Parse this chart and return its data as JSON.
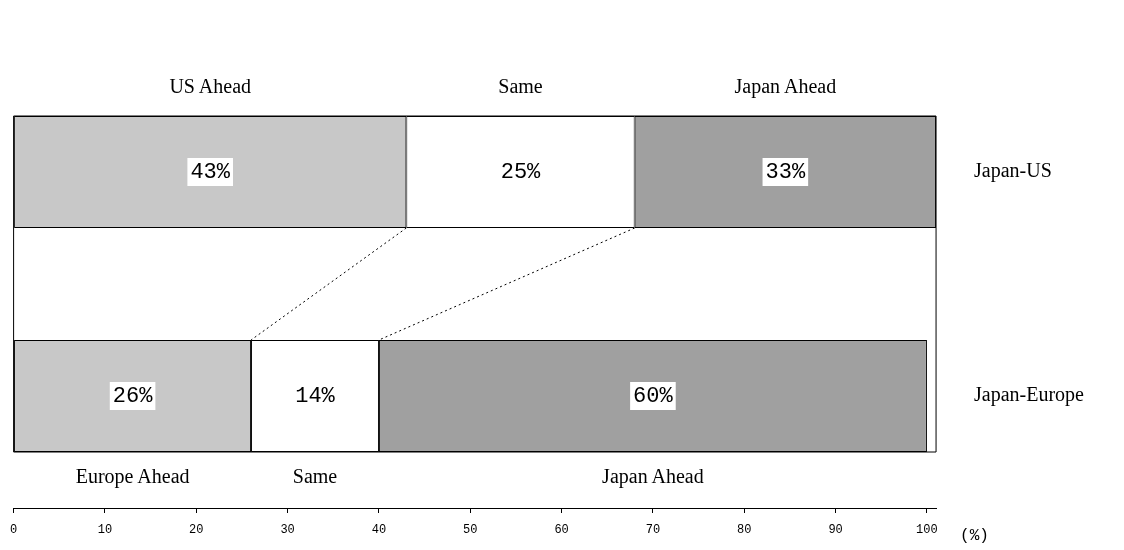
{
  "chart_data": {
    "type": "bar",
    "orientation": "horizontal",
    "stacked": true,
    "categories": [
      "Japan-US",
      "Japan-Europe"
    ],
    "series": [
      {
        "color": "#c8c8c8",
        "values": [
          43,
          26
        ],
        "value_labels": [
          "43%",
          "26%"
        ]
      },
      {
        "color": "#ffffff",
        "values": [
          25,
          14
        ],
        "value_labels": [
          "25%",
          "14%"
        ]
      },
      {
        "color": "#a0a0a0",
        "values": [
          33,
          60
        ],
        "value_labels": [
          "33%",
          "60%"
        ]
      }
    ],
    "xlim": [
      0,
      101
    ],
    "xticks": [
      0,
      10,
      20,
      30,
      40,
      50,
      60,
      70,
      80,
      90,
      100
    ],
    "xlabel": "(%)",
    "grid": false,
    "legend": false,
    "annotations": [
      "US Ahead",
      "Same",
      "Japan Ahead",
      "Europe Ahead",
      "Same",
      "Japan Ahead"
    ]
  }
}
